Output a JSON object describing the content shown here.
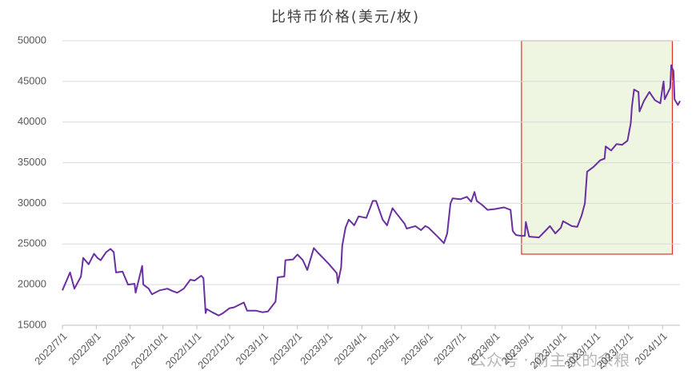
{
  "chart_data": {
    "type": "line",
    "title": "比特币价格(美元/枚)",
    "watermark": "公众号 · 财主家的余粮",
    "color": "#6a2fa0",
    "x": [
      "2022/7/1",
      "2022/7/8",
      "2022/7/12",
      "2022/7/18",
      "2022/7/20",
      "2022/7/25",
      "2022/7/30",
      "2022/8/2",
      "2022/8/5",
      "2022/8/10",
      "2022/8/14",
      "2022/8/17",
      "2022/8/19",
      "2022/8/25",
      "2022/8/30",
      "2022/9/5",
      "2022/9/6",
      "2022/9/12",
      "2022/9/13",
      "2022/9/18",
      "2022/9/21",
      "2022/9/28",
      "2022/10/5",
      "2022/10/10",
      "2022/10/14",
      "2022/10/20",
      "2022/10/26",
      "2022/10/30",
      "2022/11/5",
      "2022/11/7",
      "2022/11/9",
      "2022/11/10",
      "2022/11/15",
      "2022/11/21",
      "2022/11/25",
      "2022/12/1",
      "2022/12/5",
      "2022/12/14",
      "2022/12/17",
      "2022/12/25",
      "2022/12/31",
      "2023/1/5",
      "2023/1/12",
      "2023/1/14",
      "2023/1/20",
      "2023/1/21",
      "2023/1/28",
      "2023/2/1",
      "2023/2/6",
      "2023/2/10",
      "2023/2/16",
      "2023/2/20",
      "2023/2/25",
      "2023/3/2",
      "2023/3/9",
      "2023/3/10",
      "2023/3/13",
      "2023/3/14",
      "2023/3/17",
      "2023/3/20",
      "2023/3/25",
      "2023/3/29",
      "2023/4/5",
      "2023/4/11",
      "2023/4/14",
      "2023/4/20",
      "2023/4/24",
      "2023/4/29",
      "2023/5/3",
      "2023/5/10",
      "2023/5/12",
      "2023/5/20",
      "2023/5/25",
      "2023/5/29",
      "2023/6/1",
      "2023/6/10",
      "2023/6/15",
      "2023/6/18",
      "2023/6/21",
      "2023/6/23",
      "2023/6/30",
      "2023/7/6",
      "2023/7/10",
      "2023/7/13",
      "2023/7/15",
      "2023/7/20",
      "2023/7/25",
      "2023/8/1",
      "2023/8/9",
      "2023/8/15",
      "2023/8/17",
      "2023/8/20",
      "2023/8/25",
      "2023/8/28",
      "2023/8/29",
      "2023/9/1",
      "2023/9/10",
      "2023/9/15",
      "2023/9/20",
      "2023/9/25",
      "2023/9/30",
      "2023/10/2",
      "2023/10/10",
      "2023/10/15",
      "2023/10/19",
      "2023/10/22",
      "2023/10/24",
      "2023/10/30",
      "2023/11/5",
      "2023/11/9",
      "2023/11/10",
      "2023/11/15",
      "2023/11/20",
      "2023/11/25",
      "2023/11/30",
      "2023/12/3",
      "2023/12/4",
      "2023/12/6",
      "2023/12/10",
      "2023/12/11",
      "2023/12/15",
      "2023/12/20",
      "2023/12/25",
      "2023/12/30",
      "2024/1/1",
      "2024/1/2",
      "2024/1/3",
      "2024/1/8",
      "2024/1/9",
      "2024/1/10",
      "2024/1/11",
      "2024/1/12",
      "2024/1/15",
      "2024/1/17"
    ],
    "values": [
      19300,
      21500,
      19500,
      21000,
      23300,
      22500,
      23800,
      23300,
      23000,
      24000,
      24400,
      24000,
      21500,
      21600,
      20000,
      20100,
      19000,
      22300,
      20000,
      19500,
      18800,
      19300,
      19500,
      19200,
      19000,
      19500,
      20600,
      20500,
      21100,
      20800,
      16500,
      17000,
      16600,
      16200,
      16500,
      17100,
      17200,
      17800,
      16800,
      16800,
      16600,
      16700,
      17900,
      20900,
      21000,
      23000,
      23100,
      23700,
      23000,
      21800,
      24500,
      23900,
      23200,
      22500,
      21400,
      20200,
      22100,
      24800,
      27000,
      28000,
      27300,
      28400,
      28200,
      30300,
      30300,
      28000,
      27300,
      29400,
      28700,
      27500,
      26900,
      27200,
      26700,
      27200,
      27000,
      25800,
      25100,
      26300,
      30000,
      30600,
      30500,
      30800,
      30200,
      31400,
      30300,
      29800,
      29200,
      29300,
      29500,
      29200,
      26600,
      26100,
      26000,
      26000,
      27700,
      25900,
      25800,
      26500,
      27200,
      26300,
      27000,
      27800,
      27200,
      27100,
      28500,
      30000,
      33900,
      34500,
      35300,
      35500,
      37000,
      36500,
      37300,
      37200,
      37700,
      39900,
      41900,
      44000,
      43700,
      41300,
      42600,
      43700,
      42700,
      42300,
      44200,
      45000,
      42800,
      44200,
      47000,
      46600,
      46300,
      42800,
      42100,
      42600
    ],
    "xlim": [
      "2022/7/1",
      "2024/1/17"
    ],
    "xticks": [
      "2022/7/1",
      "2022/8/1",
      "2022/9/1",
      "2022/10/1",
      "2022/11/1",
      "2022/12/1",
      "2023/1/1",
      "2023/2/1",
      "2023/3/1",
      "2023/4/1",
      "2023/5/1",
      "2023/6/1",
      "2023/7/1",
      "2023/8/1",
      "2023/9/1",
      "2023/10/1",
      "2023/11/1",
      "2023/12/1",
      "2024/1/1"
    ],
    "ylim": [
      15000,
      50000
    ],
    "yticks": [
      15000,
      20000,
      25000,
      30000,
      35000,
      40000,
      45000,
      50000
    ],
    "grid": true,
    "highlight": {
      "xlim": [
        "2023/8/25",
        "2024/1/10"
      ],
      "ylim": [
        23750,
        50000
      ],
      "fill": "#eef5e1",
      "stroke": "#d9342b"
    }
  }
}
